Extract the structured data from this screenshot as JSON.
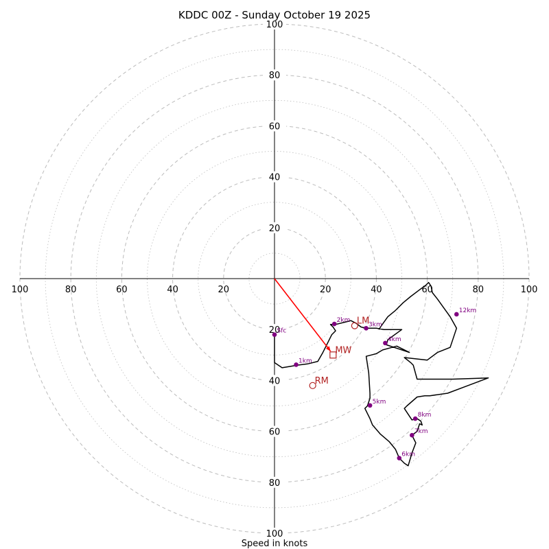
{
  "chart_data": {
    "type": "hodograph",
    "title": "KDDC 00Z - Sunday October 19 2025",
    "xlabel": "Speed in knots",
    "range": [
      -100,
      100
    ],
    "ring_values_major": [
      20,
      40,
      60,
      80,
      100
    ],
    "ring_values_minor": [
      10,
      30,
      50,
      70,
      90
    ],
    "tick_labels": {
      "top": [
        "20",
        "40",
        "60",
        "80",
        "100"
      ],
      "bottom": [
        "20",
        "40",
        "60",
        "80",
        "100"
      ],
      "left": [
        "100",
        "80",
        "60",
        "40",
        "20"
      ],
      "right": [
        "20",
        "40",
        "60",
        "80",
        "100"
      ]
    },
    "hodograph_u": [
      0,
      0,
      0,
      3,
      6,
      9,
      13,
      17,
      19,
      21,
      22.5,
      24,
      23,
      22,
      24,
      28,
      30,
      32,
      34,
      36,
      40,
      43,
      50,
      44.5,
      44,
      53,
      48,
      42.5,
      40,
      38,
      36,
      37,
      37.5,
      37.5,
      36.5,
      35.5,
      36,
      36.5,
      37.5,
      38.5,
      41.5,
      45,
      47.5,
      49,
      51,
      52.5,
      54,
      55.5,
      55,
      54,
      56,
      57,
      58,
      57.5,
      56,
      54,
      51,
      52,
      56,
      59,
      61,
      68,
      76,
      84,
      70,
      56,
      54.5,
      53.5,
      51,
      60,
      64,
      69,
      71.5,
      69,
      66.5,
      64,
      62,
      61.5,
      60.5,
      59,
      57.5,
      53.5,
      50.5,
      47.5,
      44.5,
      42,
      41
    ],
    "hodograph_v": [
      -22,
      -24,
      -33,
      -35,
      -34.5,
      -34,
      -33.5,
      -32.5,
      -29,
      -25,
      -22,
      -20.5,
      -19,
      -18,
      -18,
      -17,
      -16.5,
      -17.5,
      -19,
      -19.5,
      -19.5,
      -20,
      -20,
      -24,
      -26,
      -29,
      -26.5,
      -28,
      -29.5,
      -30,
      -30.5,
      -37,
      -45,
      -47,
      -50,
      -51,
      -52,
      -53,
      -55,
      -57.5,
      -61,
      -64,
      -67,
      -70.5,
      -72.5,
      -73.5,
      -68.5,
      -64.5,
      -63.5,
      -61.5,
      -60,
      -57,
      -57.5,
      -56,
      -55,
      -55.5,
      -51,
      -50,
      -46.5,
      -46,
      -46,
      -45,
      -42,
      -39,
      -39.5,
      -39.5,
      -34,
      -33,
      -31,
      -32,
      -29,
      -27,
      -19.5,
      -15,
      -11.5,
      -8,
      -5.5,
      -3,
      -1.5,
      -3,
      -4,
      -7,
      -9.5,
      -12.5,
      -15,
      -18.5,
      -20
    ],
    "height_markers": [
      {
        "label": "Sfc",
        "u": 0,
        "v": -22
      },
      {
        "label": "1km",
        "u": 8.5,
        "v": -33.8
      },
      {
        "label": "2km",
        "u": 23.5,
        "v": -17.8
      },
      {
        "label": "3km",
        "u": 36,
        "v": -19.5
      },
      {
        "label": "4km",
        "u": 43.5,
        "v": -25.3
      },
      {
        "label": "5km",
        "u": 37.5,
        "v": -49.8
      },
      {
        "label": "6km",
        "u": 49,
        "v": -70.5
      },
      {
        "label": "7km",
        "u": 54,
        "v": -61.5
      },
      {
        "label": "8km",
        "u": 55.3,
        "v": -55
      },
      {
        "label": "12km",
        "u": 71.5,
        "v": -14
      }
    ],
    "storm_motion": {
      "RM": {
        "label": "RM",
        "u": 15,
        "v": -42
      },
      "LM": {
        "label": "LM",
        "u": 31.5,
        "v": -18.5
      },
      "MW": {
        "label": "MW",
        "u": 23,
        "v": -30
      }
    },
    "shear_vector": {
      "from": [
        0,
        0
      ],
      "to": [
        22,
        -28.5
      ]
    },
    "colors": {
      "hodograph": "#000000",
      "markers": "#800080",
      "storm_motion": "#b22222",
      "shear": "#ff0000",
      "rings": "#bbbbbb"
    }
  }
}
